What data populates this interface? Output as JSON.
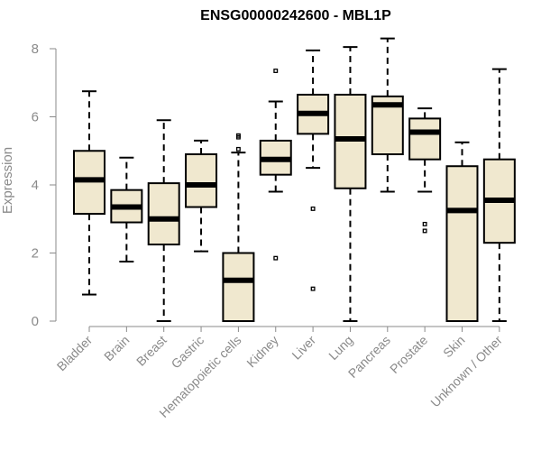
{
  "chart_data": {
    "type": "boxplot",
    "title": "ENSG00000242600 - MBL1P",
    "xlabel": "",
    "ylabel": "Expression",
    "ylim": [
      0,
      8.4
    ],
    "yticks": [
      0,
      2,
      4,
      6,
      8
    ],
    "categories": [
      "Bladder",
      "Brain",
      "Breast",
      "Gastric",
      "Hematopoietic cells",
      "Kidney",
      "Liver",
      "Lung",
      "Pancreas",
      "Prostate",
      "Skin",
      "Unknown / Other"
    ],
    "boxes": [
      {
        "category": "Bladder",
        "whisker_low": 0.78,
        "q1": 3.15,
        "median": 4.15,
        "q3": 5.0,
        "whisker_high": 6.75,
        "outliers": []
      },
      {
        "category": "Brain",
        "whisker_low": 1.75,
        "q1": 2.9,
        "median": 3.35,
        "q3": 3.85,
        "whisker_high": 4.8,
        "outliers": []
      },
      {
        "category": "Breast",
        "whisker_low": 0.0,
        "q1": 2.25,
        "median": 3.0,
        "q3": 4.05,
        "whisker_high": 5.9,
        "outliers": []
      },
      {
        "category": "Gastric",
        "whisker_low": 2.05,
        "q1": 3.35,
        "median": 4.0,
        "q3": 4.9,
        "whisker_high": 5.3,
        "outliers": []
      },
      {
        "category": "Hematopoietic cells",
        "whisker_low": 0.0,
        "q1": 0.0,
        "median": 1.2,
        "q3": 2.0,
        "whisker_high": 4.95,
        "outliers": [
          5.05,
          5.4,
          5.45
        ]
      },
      {
        "category": "Kidney",
        "whisker_low": 3.8,
        "q1": 4.3,
        "median": 4.75,
        "q3": 5.3,
        "whisker_high": 6.45,
        "outliers": [
          1.85,
          7.35
        ]
      },
      {
        "category": "Liver",
        "whisker_low": 4.5,
        "q1": 5.5,
        "median": 6.1,
        "q3": 6.65,
        "whisker_high": 7.95,
        "outliers": [
          3.3,
          0.95
        ]
      },
      {
        "category": "Lung",
        "whisker_low": 0.0,
        "q1": 3.9,
        "median": 5.35,
        "q3": 6.65,
        "whisker_high": 8.05,
        "outliers": []
      },
      {
        "category": "Pancreas",
        "whisker_low": 3.8,
        "q1": 4.9,
        "median": 6.35,
        "q3": 6.6,
        "whisker_high": 8.3,
        "outliers": []
      },
      {
        "category": "Prostate",
        "whisker_low": 3.8,
        "q1": 4.75,
        "median": 5.55,
        "q3": 5.95,
        "whisker_high": 6.25,
        "outliers": [
          2.85,
          2.65
        ]
      },
      {
        "category": "Skin",
        "whisker_low": 0.0,
        "q1": 0.0,
        "median": 3.25,
        "q3": 4.55,
        "whisker_high": 5.25,
        "outliers": []
      },
      {
        "category": "Unknown / Other",
        "whisker_low": 0.0,
        "q1": 2.3,
        "median": 3.55,
        "q3": 4.75,
        "whisker_high": 7.4,
        "outliers": []
      }
    ],
    "colors": {
      "box_fill": "#f0e8cf",
      "stroke": "#000000",
      "axis": "#8a8a8a",
      "text": "#8a8a8a",
      "title": "#000000"
    }
  }
}
